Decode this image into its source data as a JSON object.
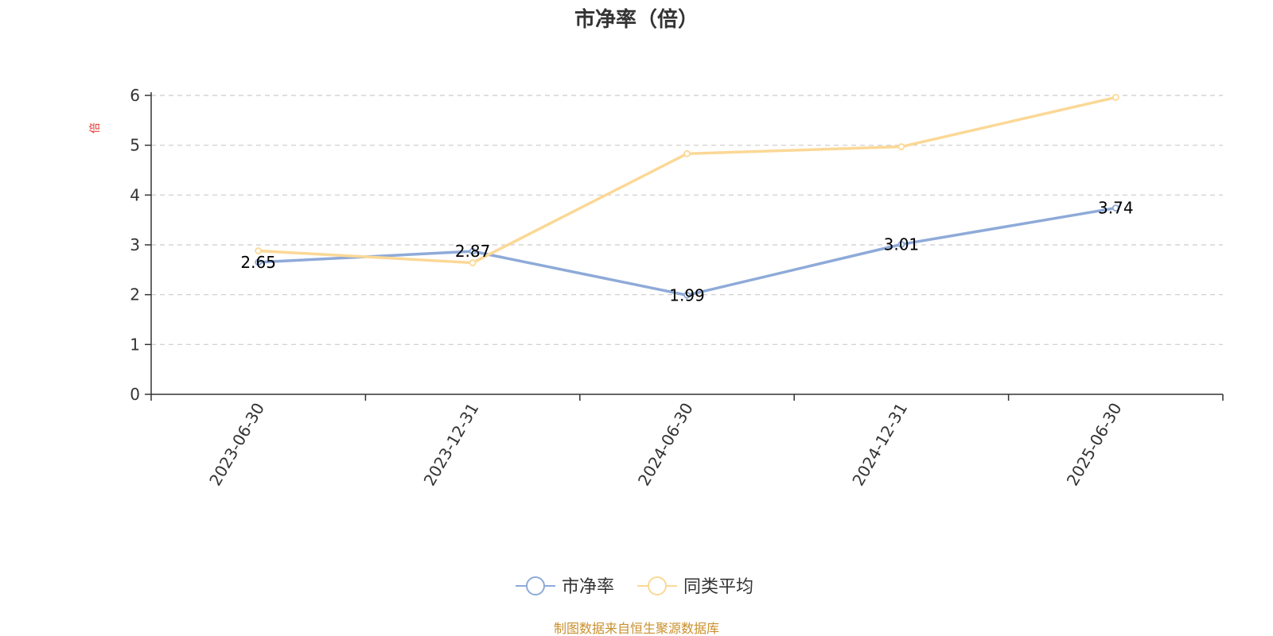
{
  "chart_data": {
    "type": "line",
    "title": "市净率（倍）",
    "unit_label": "倍",
    "categories": [
      "2023-06-30",
      "2023-12-31",
      "2024-06-30",
      "2024-12-31",
      "2025-06-30"
    ],
    "ylim": [
      0,
      6
    ],
    "yticks": [
      "0",
      "1",
      "2",
      "3",
      "4",
      "5",
      "6"
    ],
    "grid": true,
    "legend_position": "bottom-center",
    "series": [
      {
        "name": "市净率",
        "values": [
          2.65,
          2.87,
          1.99,
          3.01,
          3.74
        ],
        "labels": [
          "2.65",
          "2.87",
          "1.99",
          "3.01",
          "3.74"
        ],
        "color": "#8eaad8"
      },
      {
        "name": "同类平均",
        "values": [
          2.88,
          2.64,
          4.83,
          4.97,
          5.96
        ],
        "color": "#fbd896"
      }
    ]
  },
  "source_note": "制图数据来自恒生聚源数据库",
  "colors": {
    "axis": "#333333",
    "grid": "#cccccc",
    "unit": "#e0342b",
    "source": "#c9902d"
  }
}
